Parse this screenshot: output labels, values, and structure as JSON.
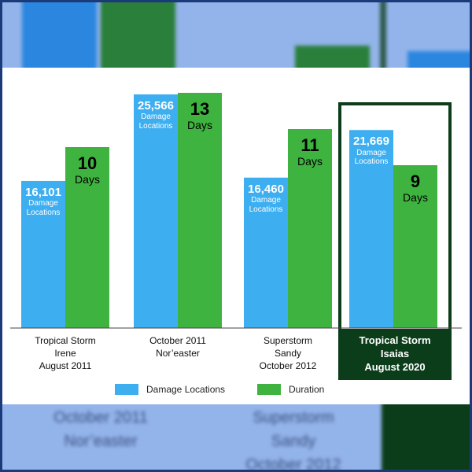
{
  "chart_data": {
    "type": "bar",
    "categories": [
      [
        "Tropical Storm",
        "Irene",
        "August 2011"
      ],
      [
        "October 2011",
        "Nor’easter"
      ],
      [
        "Superstorm",
        "Sandy",
        "October 2012"
      ],
      [
        "Tropical Storm",
        "Isaias",
        "August 2020"
      ]
    ],
    "highlighted_category_index": 3,
    "series": [
      {
        "name": "Damage Locations",
        "color": "#3daef0",
        "values": [
          16101,
          25566,
          16460,
          21669
        ],
        "labels": [
          "16,101",
          "25,566",
          "16,460",
          "21,669"
        ],
        "unit_label": [
          "Damage",
          "Locations"
        ]
      },
      {
        "name": "Duration",
        "color": "#3fb33f",
        "values": [
          10,
          13,
          11,
          9
        ],
        "labels": [
          "10",
          "13",
          "11",
          "9"
        ],
        "unit_label": "Days"
      }
    ],
    "legend": "bottom-center",
    "highlight_color": "#0b3d1a"
  }
}
